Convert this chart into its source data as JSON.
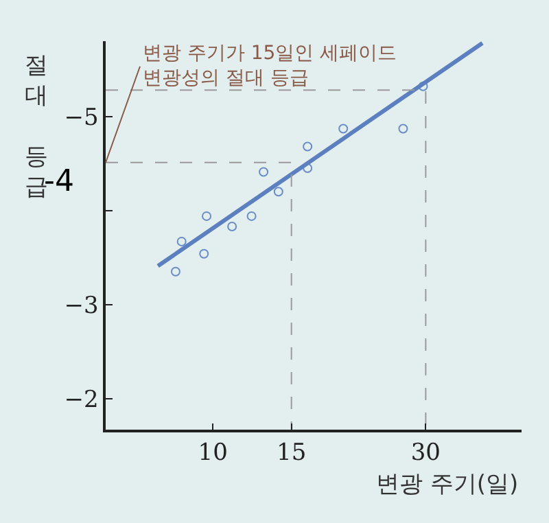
{
  "chart_data": {
    "type": "scatter",
    "xlabel": "변광 주기(일)",
    "ylabel": "절대 등급",
    "xlim": [
      5.75,
      49.2
    ],
    "ylim": [
      -1.67,
      -5.8
    ],
    "log": "x",
    "xticks": [
      10,
      15,
      30
    ],
    "yticks": [
      {
        "value": -5,
        "label": "−5"
      },
      {
        "value": -4,
        "label": null
      },
      {
        "value": -3,
        "label": "−3"
      },
      {
        "value": -2,
        "label": "−2"
      }
    ],
    "grid": false,
    "marker": "circle",
    "series": [
      {
        "color": "#6a8cc8",
        "x": [
          8.25,
          8.51,
          9.55,
          9.68,
          11.04,
          12.21,
          12.99,
          14.03,
          16.3,
          16.3,
          19.6,
          26.7,
          29.6
        ],
        "values": [
          -3.35,
          -3.67,
          -3.54,
          -3.94,
          -3.83,
          -3.94,
          -4.41,
          -4.2,
          -4.68,
          -4.45,
          -4.87,
          -4.87,
          -5.32
        ]
      },
      {
        "type": "line",
        "color": "#5b7fbf",
        "marker": "none",
        "x": [
          7.53,
          40.2
        ],
        "values": [
          -3.41,
          -5.78
        ],
        "line_style": "solid"
      },
      {
        "type": "line",
        "color": "#9a9a9a",
        "marker": "none",
        "x": [
          5.75,
          15,
          15
        ],
        "values": [
          -4.51,
          -4.51,
          -1.67
        ],
        "line_style": "dashed"
      },
      {
        "type": "line",
        "color": "#9a9a9a",
        "marker": "none",
        "x": [
          5.75,
          30,
          30
        ],
        "values": [
          -5.28,
          -5.28,
          -1.67
        ],
        "line_style": "dashed"
      }
    ],
    "annotations": [
      {
        "text": "변광 주기가 15일인 세페이드\n변광성의 절대 등급",
        "x": 5.75,
        "y": -4.51
      },
      "-4"
    ]
  }
}
